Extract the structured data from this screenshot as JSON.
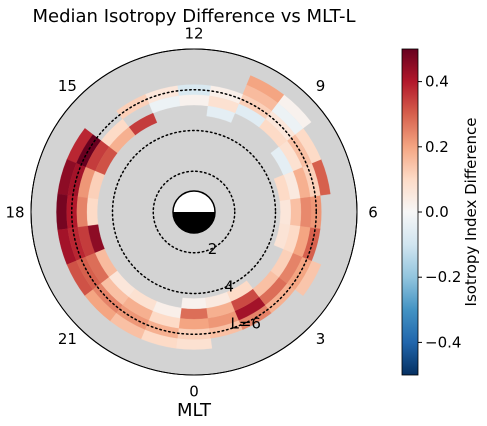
{
  "chart_data": {
    "type": "polar heatmap",
    "title": "Median Isotropy Difference vs MLT-L",
    "xlabel": "MLT",
    "colorbar_label": "Isotropy Index Difference",
    "colormap": "RdBu_r",
    "clim": [
      -0.5,
      0.5
    ],
    "colorbar_ticks": [
      {
        "value": 0.4,
        "label": "0.4"
      },
      {
        "value": 0.2,
        "label": "0.2"
      },
      {
        "value": 0.0,
        "label": "0.0"
      },
      {
        "value": -0.2,
        "label": "−0.2"
      },
      {
        "value": -0.4,
        "label": "−0.4"
      }
    ],
    "mlt_ticks": [
      {
        "mlt": 12,
        "label": "12"
      },
      {
        "mlt": 9,
        "label": "9"
      },
      {
        "mlt": 6,
        "label": "6"
      },
      {
        "mlt": 3,
        "label": "3"
      },
      {
        "mlt": 0,
        "label": "0"
      },
      {
        "mlt": 21,
        "label": "21"
      },
      {
        "mlt": 18,
        "label": "18"
      },
      {
        "mlt": 15,
        "label": "15"
      }
    ],
    "r_max": 8,
    "l_circles": [
      {
        "L": 2,
        "label": "2"
      },
      {
        "L": 4,
        "label": "4"
      },
      {
        "L": 6,
        "label": "L=6"
      }
    ],
    "background_color": "#d3d3d3",
    "bin_width_mlt": 1,
    "bin_width_l": 0.5,
    "bins": [
      {
        "mlt": 0,
        "l": 6.5,
        "v": 0.08
      },
      {
        "mlt": 0,
        "l": 6.0,
        "v": 0.12
      },
      {
        "mlt": 0,
        "l": 5.5,
        "v": 0.2
      },
      {
        "mlt": 0,
        "l": 5.0,
        "v": 0.28
      },
      {
        "mlt": 0,
        "l": 4.5,
        "v": 0.02
      },
      {
        "mlt": 1,
        "l": 6.0,
        "v": 0.15
      },
      {
        "mlt": 1,
        "l": 5.5,
        "v": 0.22
      },
      {
        "mlt": 1,
        "l": 5.0,
        "v": 0.18
      },
      {
        "mlt": 1,
        "l": 4.5,
        "v": 0.05
      },
      {
        "mlt": 2,
        "l": 6.0,
        "v": 0.25
      },
      {
        "mlt": 2,
        "l": 5.5,
        "v": 0.42
      },
      {
        "mlt": 2,
        "l": 5.0,
        "v": 0.33
      },
      {
        "mlt": 2,
        "l": 4.5,
        "v": 0.1
      },
      {
        "mlt": 3,
        "l": 6.0,
        "v": 0.18
      },
      {
        "mlt": 3,
        "l": 5.5,
        "v": 0.28
      },
      {
        "mlt": 3,
        "l": 5.0,
        "v": 0.15
      },
      {
        "mlt": 4,
        "l": 6.5,
        "v": 0.14
      },
      {
        "mlt": 4,
        "l": 6.0,
        "v": 0.2
      },
      {
        "mlt": 4,
        "l": 5.5,
        "v": 0.25
      },
      {
        "mlt": 4,
        "l": 5.0,
        "v": 0.12
      },
      {
        "mlt": 5,
        "l": 6.0,
        "v": 0.3
      },
      {
        "mlt": 5,
        "l": 5.5,
        "v": 0.2
      },
      {
        "mlt": 5,
        "l": 5.0,
        "v": 0.1
      },
      {
        "mlt": 5,
        "l": 4.5,
        "v": 0.07
      },
      {
        "mlt": 6,
        "l": 6.0,
        "v": 0.22
      },
      {
        "mlt": 6,
        "l": 5.5,
        "v": 0.24
      },
      {
        "mlt": 6,
        "l": 5.0,
        "v": 0.15
      },
      {
        "mlt": 6,
        "l": 4.5,
        "v": 0.06
      },
      {
        "mlt": 7,
        "l": 6.5,
        "v": 0.3
      },
      {
        "mlt": 7,
        "l": 6.0,
        "v": 0.12
      },
      {
        "mlt": 7,
        "l": 5.5,
        "v": 0.18
      },
      {
        "mlt": 7,
        "l": 5.0,
        "v": 0.05
      },
      {
        "mlt": 7,
        "l": 4.5,
        "v": 0.1
      },
      {
        "mlt": 8,
        "l": 6.5,
        "v": 0.1
      },
      {
        "mlt": 8,
        "l": 6.0,
        "v": 0.15
      },
      {
        "mlt": 8,
        "l": 5.5,
        "v": 0.08
      },
      {
        "mlt": 8,
        "l": 5.0,
        "v": -0.05
      },
      {
        "mlt": 9,
        "l": 7.0,
        "v": 0.02
      },
      {
        "mlt": 9,
        "l": 6.5,
        "v": -0.03
      },
      {
        "mlt": 9,
        "l": 6.0,
        "v": 0.06
      },
      {
        "mlt": 9,
        "l": 5.5,
        "v": 0.1
      },
      {
        "mlt": 10,
        "l": 7.0,
        "v": 0.2
      },
      {
        "mlt": 10,
        "l": 6.5,
        "v": 0.16
      },
      {
        "mlt": 10,
        "l": 6.0,
        "v": 0.12
      },
      {
        "mlt": 10,
        "l": 5.5,
        "v": -0.06
      },
      {
        "mlt": 11,
        "l": 6.0,
        "v": 0.03
      },
      {
        "mlt": 11,
        "l": 5.5,
        "v": 0.08
      },
      {
        "mlt": 11,
        "l": 5.0,
        "v": -0.05
      },
      {
        "mlt": 12,
        "l": 6.0,
        "v": -0.08
      },
      {
        "mlt": 12,
        "l": 5.5,
        "v": 0.02
      },
      {
        "mlt": 13,
        "l": 6.0,
        "v": 0.06
      },
      {
        "mlt": 13,
        "l": 5.5,
        "v": -0.03
      },
      {
        "mlt": 14,
        "l": 6.0,
        "v": 0.12
      },
      {
        "mlt": 14,
        "l": 5.0,
        "v": 0.35
      },
      {
        "mlt": 15,
        "l": 5.5,
        "v": 0.1
      },
      {
        "mlt": 15,
        "l": 5.0,
        "v": 0.18
      },
      {
        "mlt": 16,
        "l": 6.5,
        "v": 0.38
      },
      {
        "mlt": 16,
        "l": 6.0,
        "v": 0.5
      },
      {
        "mlt": 16,
        "l": 5.5,
        "v": 0.35
      },
      {
        "mlt": 16,
        "l": 5.0,
        "v": 0.32
      },
      {
        "mlt": 17,
        "l": 6.5,
        "v": 0.45
      },
      {
        "mlt": 17,
        "l": 6.0,
        "v": 0.42
      },
      {
        "mlt": 17,
        "l": 5.5,
        "v": 0.22
      },
      {
        "mlt": 17,
        "l": 5.0,
        "v": 0.12
      },
      {
        "mlt": 18,
        "l": 6.5,
        "v": 0.48
      },
      {
        "mlt": 18,
        "l": 6.0,
        "v": 0.4
      },
      {
        "mlt": 18,
        "l": 5.5,
        "v": 0.25
      },
      {
        "mlt": 18,
        "l": 5.0,
        "v": 0.1
      },
      {
        "mlt": 19,
        "l": 6.5,
        "v": 0.42
      },
      {
        "mlt": 19,
        "l": 6.0,
        "v": 0.38
      },
      {
        "mlt": 19,
        "l": 5.5,
        "v": 0.35
      },
      {
        "mlt": 19,
        "l": 5.0,
        "v": 0.45
      },
      {
        "mlt": 20,
        "l": 6.5,
        "v": 0.32
      },
      {
        "mlt": 20,
        "l": 6.0,
        "v": 0.3
      },
      {
        "mlt": 20,
        "l": 5.5,
        "v": 0.28
      },
      {
        "mlt": 20,
        "l": 5.0,
        "v": 0.16
      },
      {
        "mlt": 21,
        "l": 6.5,
        "v": 0.2
      },
      {
        "mlt": 21,
        "l": 6.0,
        "v": 0.25
      },
      {
        "mlt": 21,
        "l": 5.5,
        "v": 0.15
      },
      {
        "mlt": 21,
        "l": 5.0,
        "v": 0.06
      },
      {
        "mlt": 22,
        "l": 6.5,
        "v": 0.15
      },
      {
        "mlt": 22,
        "l": 6.0,
        "v": 0.22
      },
      {
        "mlt": 22,
        "l": 5.5,
        "v": 0.18
      },
      {
        "mlt": 22,
        "l": 5.0,
        "v": 0.08
      },
      {
        "mlt": 23,
        "l": 6.5,
        "v": 0.1
      },
      {
        "mlt": 23,
        "l": 6.0,
        "v": 0.18
      },
      {
        "mlt": 23,
        "l": 5.5,
        "v": 0.1
      },
      {
        "mlt": 23,
        "l": 5.0,
        "v": 0.03
      }
    ]
  }
}
